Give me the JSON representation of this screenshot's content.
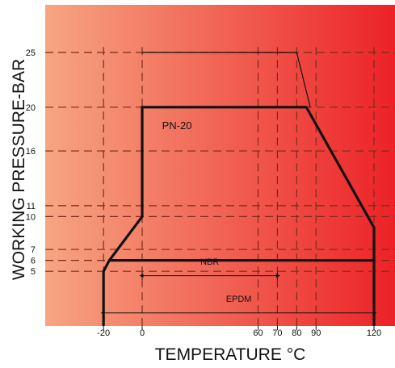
{
  "chart_data": {
    "type": "area",
    "title": "",
    "xlabel": "TEMPERATURE °C",
    "ylabel": "WORKING PRESSURE-BAR",
    "x_ticks": [
      -20,
      0,
      60,
      70,
      80,
      90,
      120
    ],
    "y_ticks": [
      5,
      6,
      7,
      10,
      11,
      16,
      20,
      25
    ],
    "xlim": [
      -33,
      127
    ],
    "ylim": [
      0,
      28.5
    ],
    "grid": "dashed at tick values",
    "colors": {
      "gradient_start": "#f6a582",
      "gradient_end": "#ec2227",
      "line": "#111111",
      "grid": "#7a2a1a"
    },
    "curve_label": "PN-20",
    "envelope": [
      {
        "x": -20,
        "y": 0
      },
      {
        "x": -20,
        "y": 5
      },
      {
        "x": -17,
        "y": 6
      },
      {
        "x": 0,
        "y": 10
      },
      {
        "x": 0,
        "y": 20
      },
      {
        "x": 85,
        "y": 20
      },
      {
        "x": 120,
        "y": 9
      },
      {
        "x": 120,
        "y": 0
      }
    ],
    "outer_envelope": [
      {
        "x": 80,
        "y": 25
      },
      {
        "x": 87,
        "y": 20
      }
    ],
    "baseline_6bar": {
      "x_from": -17,
      "x_to": 120,
      "y": 6
    },
    "ranges": [
      {
        "name": "NBR",
        "x_from": 0,
        "x_to": 70
      },
      {
        "name": "EPDM",
        "x_from": -20,
        "x_to": 120
      }
    ]
  }
}
